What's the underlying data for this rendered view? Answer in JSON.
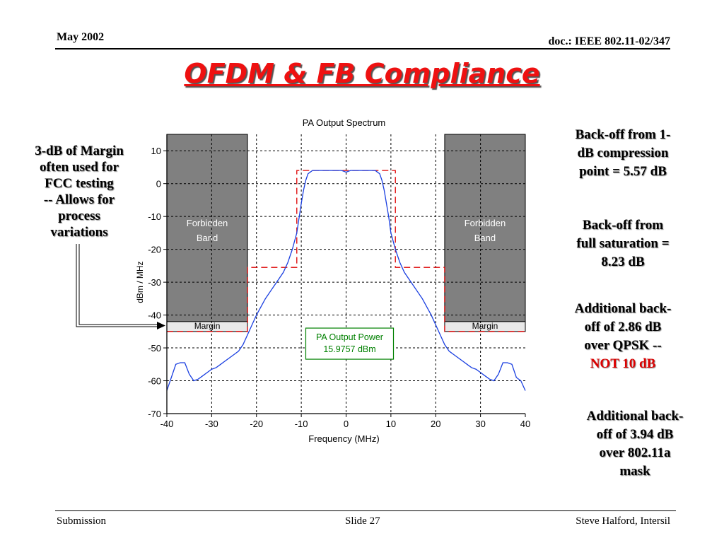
{
  "header": {
    "date": "May 2002",
    "doc": "doc.: IEEE 802.11-02/347"
  },
  "title": "OFDM & FB Compliance",
  "left_note": [
    "3-dB of Margin",
    "often used for",
    "FCC testing",
    "-- Allows for",
    "process",
    "variations"
  ],
  "right_notes": {
    "n1": [
      "Back-off from 1-",
      "dB compression",
      "point = 5.57 dB"
    ],
    "n2": [
      "Back-off from",
      "full saturation =",
      "8.23 dB"
    ],
    "n3": [
      "Additional back-",
      "off of 2.86 dB",
      "over QPSK --"
    ],
    "n3_red": "NOT 10 dB",
    "n4": [
      "Additional back-",
      "off of 3.94 dB",
      "over 802.11a",
      "mask"
    ]
  },
  "footer": {
    "left": "Submission",
    "center": "Slide 27",
    "right": "Steve Halford, Intersil"
  },
  "chart_data": {
    "type": "line",
    "title": "PA Output Spectrum",
    "xlabel": "Frequency (MHz)",
    "ylabel": "dBm / MHz",
    "xlim": [
      -40,
      40
    ],
    "ylim": [
      -70,
      15
    ],
    "xticks": [
      -40,
      -30,
      -20,
      -10,
      0,
      10,
      20,
      30,
      40
    ],
    "yticks": [
      10,
      0,
      -10,
      -20,
      -30,
      -40,
      -50,
      -60,
      -70
    ],
    "grid": true,
    "forbidden_bands": [
      {
        "x": [
          -40,
          -22
        ],
        "y": [
          -42,
          15
        ],
        "label": "Forbidden Band",
        "label_lines": [
          "Forbidden",
          "Band"
        ]
      },
      {
        "x": [
          22,
          40
        ],
        "y": [
          -42,
          15
        ],
        "label": "Forbidden Band",
        "label_lines": [
          "Forbidden",
          "Band"
        ]
      }
    ],
    "margin_bands": [
      {
        "x": [
          -40,
          -22
        ],
        "y": [
          -45,
          -42
        ],
        "label": "Margin"
      },
      {
        "x": [
          22,
          40
        ],
        "y": [
          -45,
          -42
        ],
        "label": "Margin"
      }
    ],
    "mask": {
      "x": [
        -40,
        -22,
        -22,
        -11,
        -11,
        11,
        11,
        22,
        22,
        40
      ],
      "y": [
        -45,
        -45,
        -25.5,
        -25.5,
        4,
        4,
        -25.5,
        -25.5,
        -45,
        -45
      ]
    },
    "annotation": {
      "lines": [
        "PA Output Power",
        "15.9757 dBm"
      ],
      "x": 0,
      "y": -50
    },
    "series": [
      {
        "x": [
          -40,
          -39,
          -38,
          -37,
          -36,
          -35,
          -34,
          -33,
          -32,
          -31,
          -30,
          -29,
          -28,
          -27,
          -26,
          -25,
          -24,
          -23,
          -22,
          -21,
          -20,
          -19,
          -18,
          -17,
          -16,
          -15,
          -14,
          -13,
          -12,
          -11,
          -10,
          -9.5,
          -9,
          -8.5,
          -8,
          -7.5,
          -7,
          -6.5,
          -6,
          -5,
          -4,
          -3,
          -2,
          -1,
          0,
          1,
          2,
          3,
          4,
          5,
          6,
          6.5,
          7,
          7.5,
          8,
          8.5,
          9,
          9.5,
          10,
          11,
          12,
          13,
          14,
          15,
          16,
          17,
          18,
          19,
          20,
          21,
          22,
          23,
          24,
          25,
          26,
          27,
          28,
          29,
          30,
          31,
          32,
          33,
          34,
          35,
          36,
          37,
          38,
          39,
          40
        ],
        "y": [
          -63,
          -59,
          -55,
          -54.5,
          -54.5,
          -58,
          -60,
          -59.5,
          -58.5,
          -57.5,
          -56.5,
          -56,
          -55,
          -54,
          -53,
          -52,
          -51,
          -49,
          -46,
          -43,
          -40,
          -37.5,
          -35,
          -33,
          -31,
          -29,
          -27,
          -24,
          -20,
          -15,
          -6,
          -2,
          1,
          3,
          3.5,
          4,
          4,
          4,
          4,
          4,
          4,
          4,
          4,
          4,
          3.5,
          4,
          4,
          4,
          4,
          4,
          4,
          4,
          3.5,
          3,
          1,
          -2,
          -6,
          -10,
          -15,
          -20,
          -24,
          -27,
          -29,
          -31,
          -33,
          -35,
          -37.5,
          -40,
          -43,
          -46,
          -49,
          -51,
          -52,
          -53,
          -54,
          -55,
          -56,
          -56.5,
          -57.5,
          -58.5,
          -59.5,
          -60,
          -58,
          -54.5,
          -54.5,
          -55,
          -59,
          -60,
          -63
        ]
      }
    ]
  }
}
